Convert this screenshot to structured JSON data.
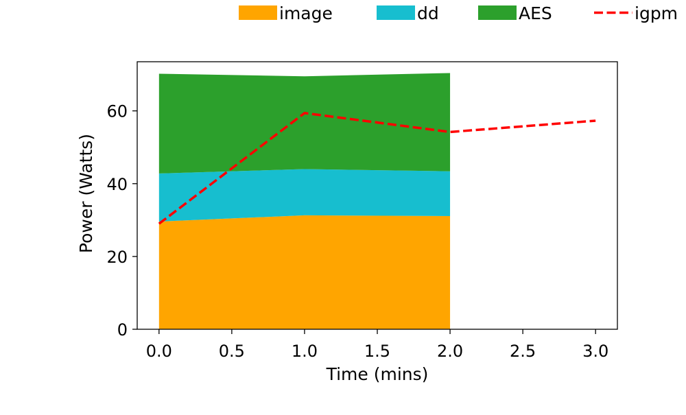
{
  "chart_data": {
    "type": "area",
    "title": "",
    "xlabel": "Time (mins)",
    "ylabel": "Power (Watts)",
    "xlim": [
      -0.15,
      3.15
    ],
    "ylim": [
      0,
      73.5
    ],
    "xticks": [
      0.0,
      0.5,
      1.0,
      1.5,
      2.0,
      2.5,
      3.0
    ],
    "xtick_labels": [
      "0.0",
      "0.5",
      "1.0",
      "1.5",
      "2.0",
      "2.5",
      "3.0"
    ],
    "yticks": [
      0,
      20,
      40,
      60
    ],
    "ytick_labels": [
      "0",
      "20",
      "40",
      "60"
    ],
    "grid": false,
    "legend_position": "top",
    "stacked_series": [
      {
        "name": "image",
        "color": "#ffa500",
        "x": [
          0,
          1,
          2
        ],
        "values": [
          29.6,
          31.3,
          31.1
        ]
      },
      {
        "name": "dd",
        "color": "#17becf",
        "x": [
          0,
          1,
          2
        ],
        "values": [
          13.2,
          12.7,
          12.3
        ]
      },
      {
        "name": "AES",
        "color": "#2ca02c",
        "x": [
          0,
          1,
          2
        ],
        "values": [
          27.4,
          25.5,
          27.0
        ]
      }
    ],
    "line_series": [
      {
        "name": "igpm",
        "color": "#ff0000",
        "style": "dashed",
        "x": [
          0,
          1,
          2,
          3
        ],
        "values": [
          29.0,
          59.4,
          54.2,
          57.3
        ]
      }
    ]
  }
}
